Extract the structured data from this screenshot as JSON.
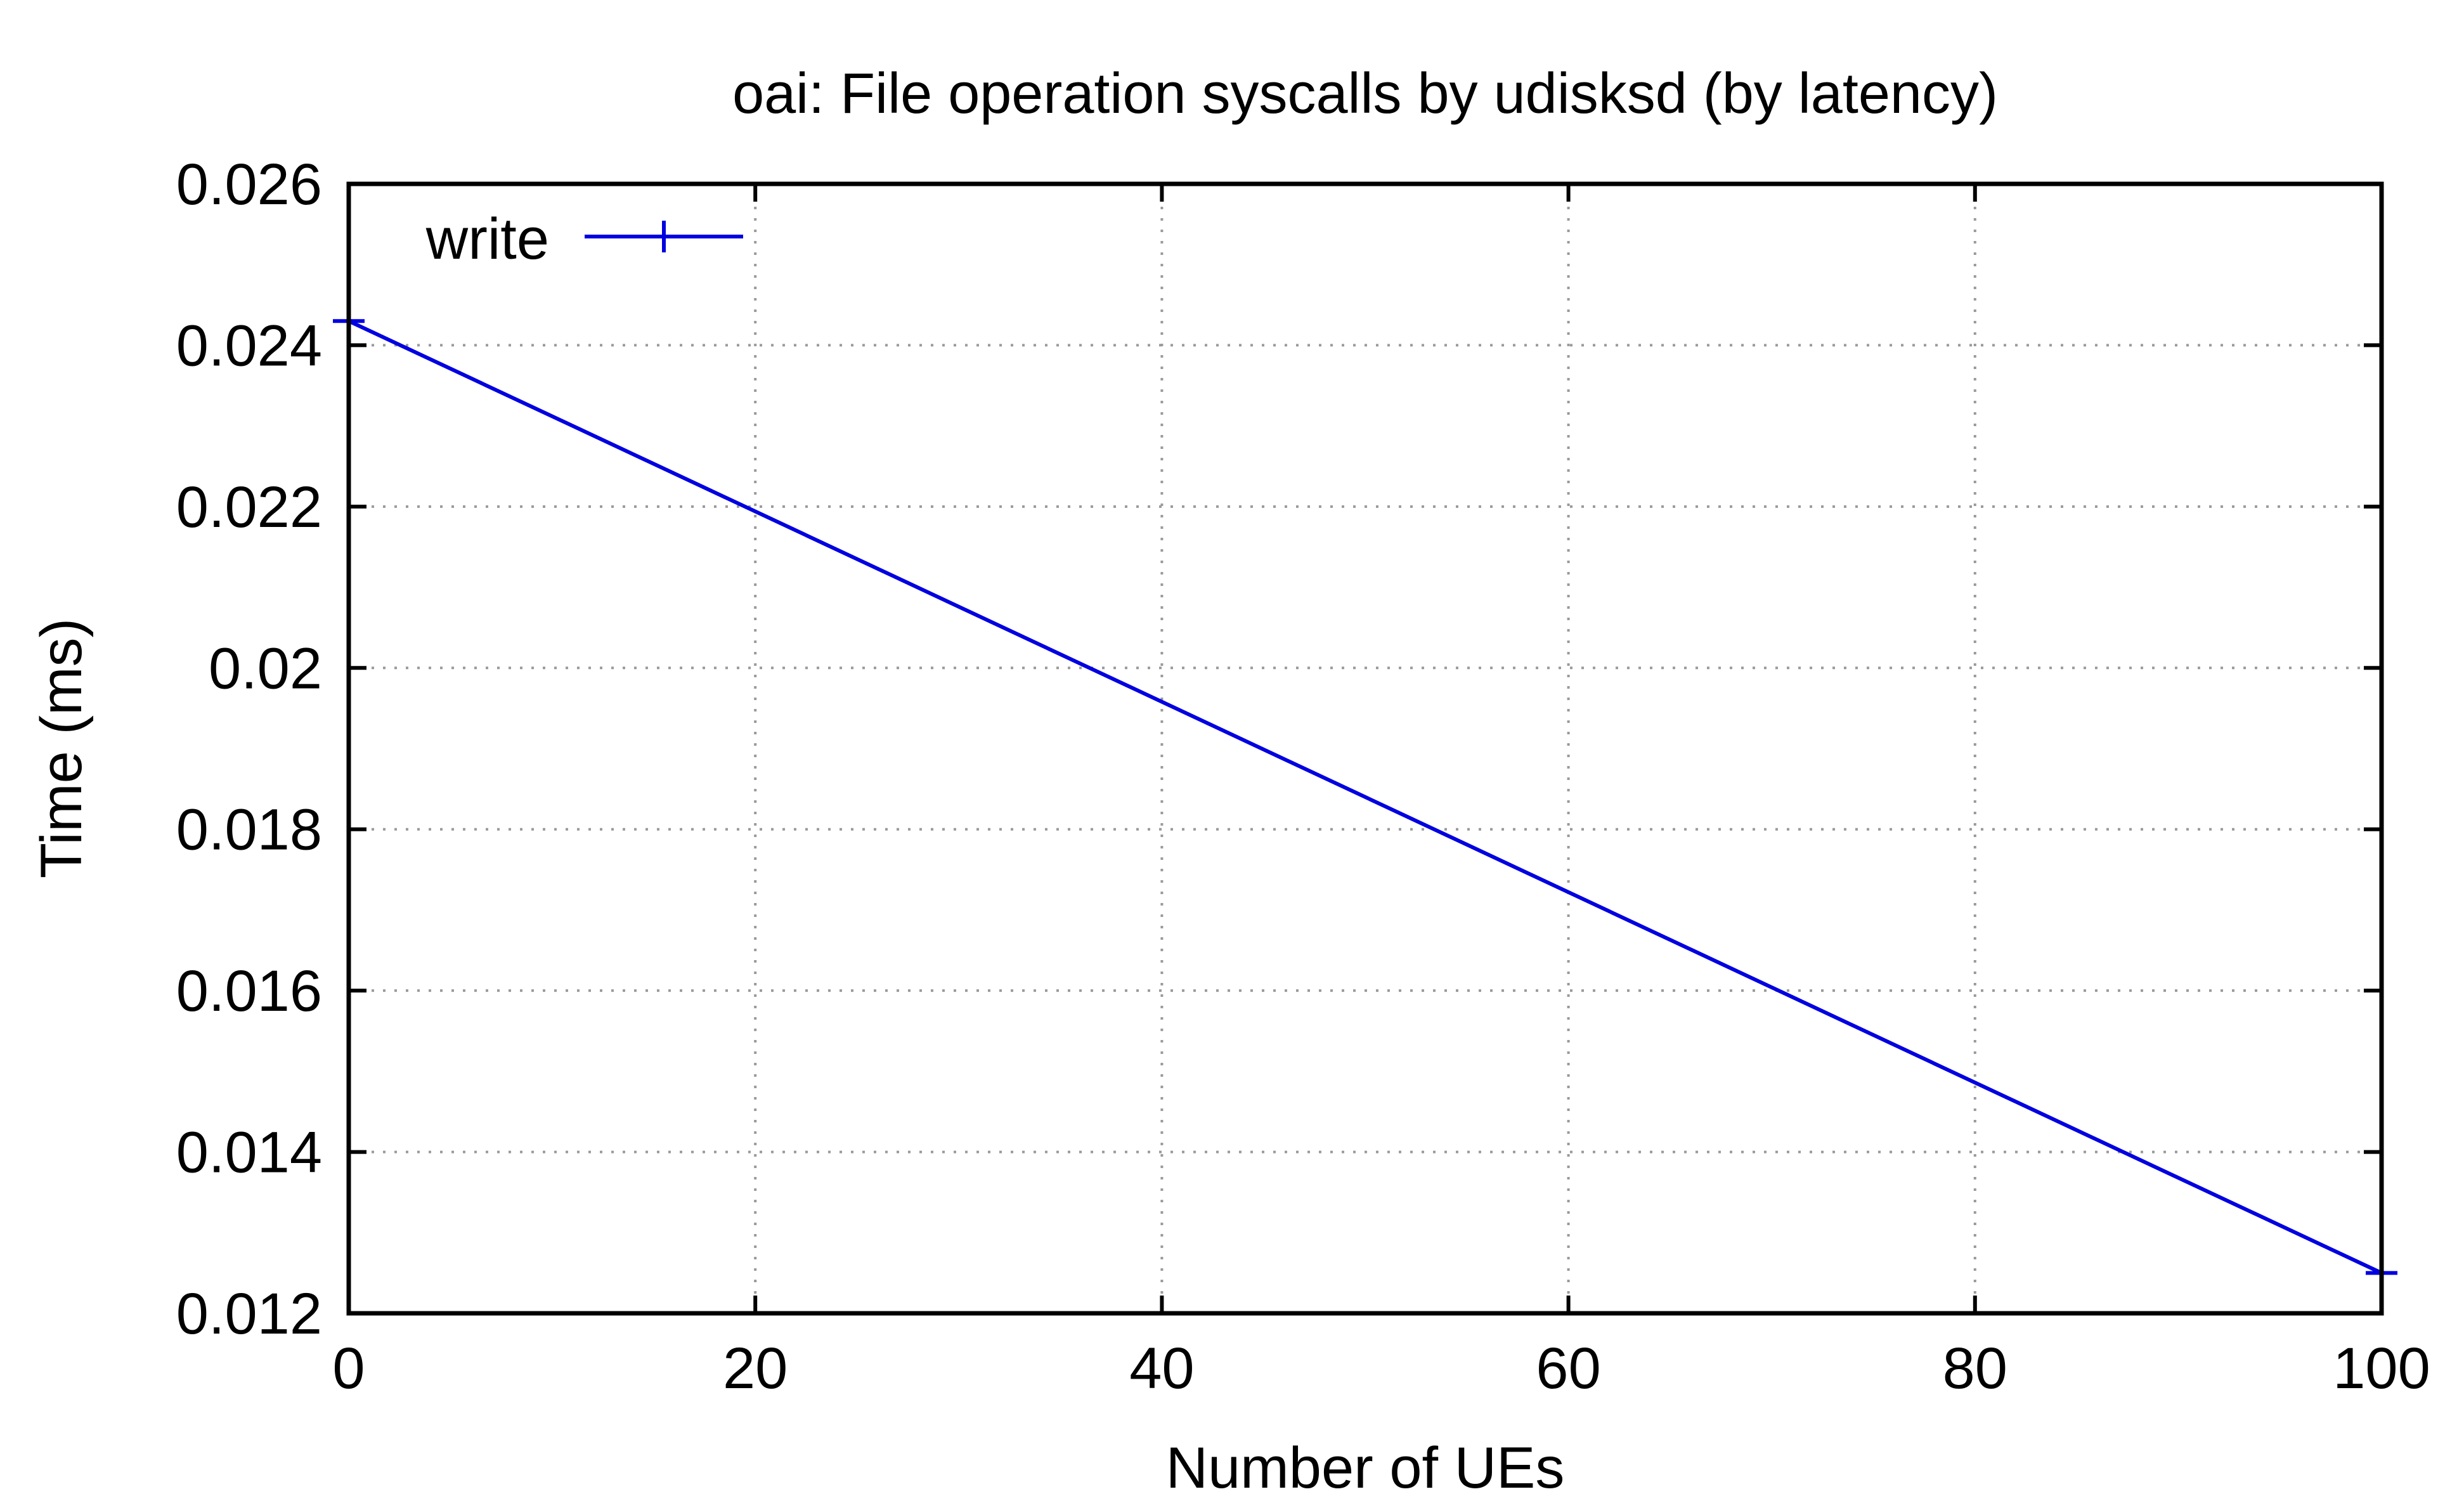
{
  "chart_data": {
    "type": "line",
    "title": "oai: File operation syscalls by udisksd (by latency)",
    "xlabel": "Number of UEs",
    "ylabel": "Time (ms)",
    "xlim": [
      0,
      100
    ],
    "ylim": [
      0.012,
      0.026
    ],
    "xticks": [
      0,
      20,
      40,
      60,
      80,
      100
    ],
    "xtick_labels": [
      "0",
      "20",
      "40",
      "60",
      "80",
      "100"
    ],
    "yticks": [
      0.012,
      0.014,
      0.016,
      0.018,
      0.02,
      0.022,
      0.024,
      0.026
    ],
    "ytick_labels": [
      "0.012",
      "0.014",
      "0.016",
      "0.018",
      "0.02",
      "0.022",
      "0.024",
      "0.026"
    ],
    "grid": true,
    "legend_position": "top-left",
    "series": [
      {
        "name": "write",
        "color": "#0000e0",
        "x": [
          0,
          100
        ],
        "y": [
          0.0243,
          0.0125
        ]
      }
    ]
  }
}
